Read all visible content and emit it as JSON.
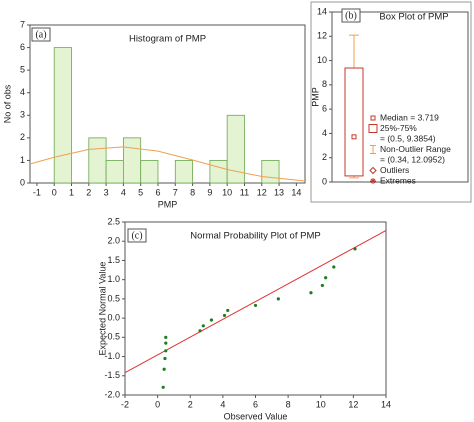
{
  "chart_data": [
    {
      "type": "histogram",
      "panel_label": "(a)",
      "title": "Histogram of PMP",
      "x_label": "PMP",
      "y_label": "No of obs",
      "bins": [
        0,
        1,
        2,
        3,
        4,
        5,
        6,
        7,
        8,
        9,
        10,
        11,
        12,
        13
      ],
      "counts": [
        6,
        0,
        2,
        1,
        2,
        1,
        0,
        1,
        0,
        1,
        3,
        0,
        1
      ],
      "color": "#e4f3d2",
      "edge_color": "#6aa84f",
      "curve": {
        "color": "#f0a050",
        "x": [
          -1.4,
          0,
          2,
          4,
          6,
          8,
          10,
          12,
          14.5
        ],
        "y": [
          0.84,
          1.14,
          1.49,
          1.6,
          1.41,
          1.02,
          0.6,
          0.29,
          0.09
        ]
      },
      "xlim": [
        -1.4,
        14.5
      ],
      "ylim": [
        0,
        7
      ],
      "xticks": [
        -1,
        0,
        1,
        2,
        3,
        4,
        5,
        6,
        7,
        8,
        9,
        10,
        11,
        12,
        13,
        14
      ],
      "yticks": [
        0,
        1,
        2,
        3,
        4,
        5,
        6,
        7
      ]
    },
    {
      "type": "box",
      "panel_label": "(b)",
      "title": "Box Plot of PMP",
      "y_label": "PMP",
      "median": 3.719,
      "q1": 0.5,
      "q3": 9.3854,
      "whisker_low": 0.34,
      "whisker_high": 12.0952,
      "color": "#c0392b",
      "whisker_color": "#f0a050",
      "legend": [
        "Median = 3.719",
        "25%-75%",
        "= (0.5, 9.3854)",
        "Non-Outlier Range",
        "= (0.34, 12.0952)",
        "Outliers",
        "Extremes"
      ],
      "ylim": [
        0,
        14
      ],
      "yticks": [
        0,
        2,
        4,
        6,
        8,
        10,
        12,
        14
      ]
    },
    {
      "type": "scatter",
      "panel_label": "(c)",
      "title": "Normal Probability Plot of PMP",
      "x_label": "Observed Value",
      "y_label": "Expected Normal Value",
      "x": [
        0.34,
        0.4,
        0.45,
        0.5,
        0.5,
        0.5,
        2.6,
        2.8,
        3.3,
        4.1,
        4.3,
        6.0,
        7.4,
        9.4,
        10.1,
        10.3,
        10.8,
        12.1
      ],
      "y": [
        -1.8,
        -1.33,
        -1.05,
        -0.85,
        -0.65,
        -0.5,
        -0.33,
        -0.2,
        -0.05,
        0.07,
        0.2,
        0.33,
        0.5,
        0.66,
        0.85,
        1.05,
        1.33,
        1.8
      ],
      "color": "#1e7d1e",
      "fit_line": {
        "color": "#e03030",
        "x": [
          -2,
          14
        ],
        "y": [
          -1.42,
          2.28
        ]
      },
      "xlim": [
        -2,
        14
      ],
      "ylim": [
        -2,
        2.5
      ],
      "xticks": [
        -2,
        0,
        2,
        4,
        6,
        8,
        10,
        12,
        14
      ],
      "yticks": [
        {
          "value": -2,
          "label": "-2.0"
        },
        -1.5,
        {
          "value": -1,
          "label": "-1.0"
        },
        -0.5,
        {
          "value": 0,
          "label": "0.0"
        },
        0.5,
        {
          "value": 1,
          "label": "1.0"
        },
        1.5,
        {
          "value": 2,
          "label": "2.0"
        },
        2.5
      ]
    }
  ]
}
